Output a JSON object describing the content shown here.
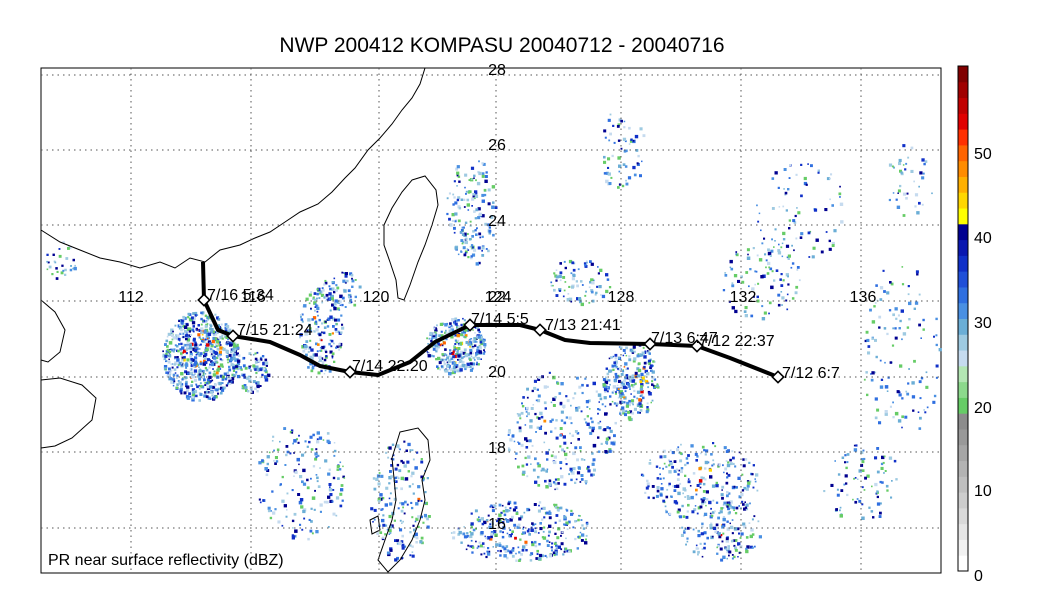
{
  "title": "NWP 200412 KOMPASU 20040712 - 20040716",
  "map_label": "PR near surface reflectivity (dBZ)",
  "lon_labels": [
    "112",
    "116",
    "120",
    "124",
    "128",
    "132",
    "136"
  ],
  "lat_labels": [
    "28",
    "26",
    "24",
    "22",
    "20",
    "18",
    "16"
  ],
  "colorbar": {
    "tick_labels": [
      "0",
      "10",
      "20",
      "30",
      "40",
      "50"
    ],
    "colors": [
      "#ffffff",
      "#f2f2f2",
      "#e6e6e6",
      "#d9d9d9",
      "#cccccc",
      "#bfbfbf",
      "#b3b3b3",
      "#a6a6a6",
      "#999999",
      "#8c8c8c",
      "#66cc66",
      "#8cd98c",
      "#b3e6b3",
      "#c6dbef",
      "#9ecae1",
      "#6baed6",
      "#4a90e2",
      "#2f6fe0",
      "#1f4fd8",
      "#1030c8",
      "#0a18b0",
      "#000090",
      "#ffff00",
      "#ffd700",
      "#ffb000",
      "#ff8c00",
      "#ff6400",
      "#ff3000",
      "#e00000",
      "#c00000",
      "#a00000",
      "#800000"
    ]
  },
  "track": {
    "color": "#000000",
    "labels": [
      {
        "text": "7/16 5:34"
      },
      {
        "text": "7/15 21:24"
      },
      {
        "text": "7/14 22:20"
      },
      {
        "text": "7/14 5:5"
      },
      {
        "text": "7/13 21:41"
      },
      {
        "text": "7/13 6:47"
      },
      {
        "text": "7/12 22:37"
      },
      {
        "text": "7/12 6:7"
      }
    ]
  }
}
